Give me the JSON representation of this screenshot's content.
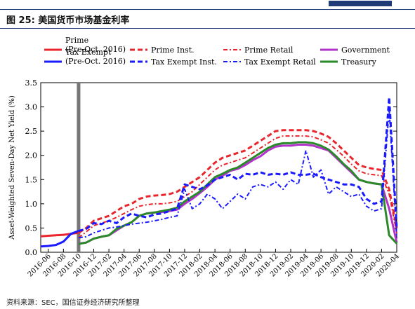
{
  "header": {
    "figure_title": "图 25:  美国货币市场基金利率",
    "source_note": "资料来源：SEC，国信证券经济研究所整理"
  },
  "chart_data": {
    "type": "line",
    "title": "",
    "xlabel": "",
    "ylabel": "Asset-Weighted Seven-Day Net Yield (%)",
    "ylim": [
      0,
      3.5
    ],
    "yticks": [
      "0.0",
      "0.5",
      "1.0",
      "1.5",
      "2.0",
      "2.5",
      "3.0",
      "3.5"
    ],
    "x_ticks": [
      "2016-06",
      "2016-08",
      "2016-10",
      "2016-12",
      "2017-02",
      "2017-04",
      "2017-06",
      "2017-08",
      "2017-10",
      "2017-12",
      "2018-02",
      "2018-04",
      "2018-06",
      "2018-08",
      "2018-10",
      "2018-12",
      "2019-02",
      "2019-04",
      "2019-06",
      "2019-08",
      "2019-10",
      "2019-12",
      "2020-02",
      "2020-04"
    ],
    "x_range": [
      "2016-05",
      "2020-04"
    ],
    "divider_date": "2016-10",
    "grid": false,
    "legend_position": "top",
    "series": [
      {
        "name": "Prime\n(Pre-Oct. 2016)",
        "color": "#e8262b",
        "style": "solid",
        "width": 3,
        "points": [
          [
            "2016-05",
            0.33
          ],
          [
            "2016-06",
            0.34
          ],
          [
            "2016-07",
            0.35
          ],
          [
            "2016-08",
            0.36
          ],
          [
            "2016-09",
            0.38
          ],
          [
            "2016-10",
            0.4
          ]
        ]
      },
      {
        "name": "Tax Exempt\n(Pre-Oct. 2016)",
        "color": "#1a1aff",
        "style": "solid",
        "width": 3,
        "points": [
          [
            "2016-05",
            0.12
          ],
          [
            "2016-06",
            0.13
          ],
          [
            "2016-07",
            0.15
          ],
          [
            "2016-08",
            0.22
          ],
          [
            "2016-09",
            0.38
          ],
          [
            "2016-10",
            0.44
          ]
        ]
      },
      {
        "name": "Prime Inst.",
        "color": "#e8262b",
        "style": "dash",
        "width": 3,
        "points": [
          [
            "2016-10",
            0.4
          ],
          [
            "2016-11",
            0.5
          ],
          [
            "2016-12",
            0.65
          ],
          [
            "2017-01",
            0.7
          ],
          [
            "2017-02",
            0.75
          ],
          [
            "2017-03",
            0.85
          ],
          [
            "2017-04",
            0.95
          ],
          [
            "2017-05",
            1.0
          ],
          [
            "2017-06",
            1.1
          ],
          [
            "2017-07",
            1.15
          ],
          [
            "2017-08",
            1.17
          ],
          [
            "2017-09",
            1.18
          ],
          [
            "2017-10",
            1.2
          ],
          [
            "2017-11",
            1.25
          ],
          [
            "2017-12",
            1.35
          ],
          [
            "2018-01",
            1.45
          ],
          [
            "2018-02",
            1.55
          ],
          [
            "2018-03",
            1.7
          ],
          [
            "2018-04",
            1.85
          ],
          [
            "2018-05",
            1.95
          ],
          [
            "2018-06",
            2.0
          ],
          [
            "2018-07",
            2.05
          ],
          [
            "2018-08",
            2.1
          ],
          [
            "2018-09",
            2.2
          ],
          [
            "2018-10",
            2.3
          ],
          [
            "2018-11",
            2.4
          ],
          [
            "2018-12",
            2.5
          ],
          [
            "2019-01",
            2.52
          ],
          [
            "2019-02",
            2.52
          ],
          [
            "2019-03",
            2.52
          ],
          [
            "2019-04",
            2.52
          ],
          [
            "2019-05",
            2.5
          ],
          [
            "2019-06",
            2.45
          ],
          [
            "2019-07",
            2.38
          ],
          [
            "2019-08",
            2.25
          ],
          [
            "2019-09",
            2.1
          ],
          [
            "2019-10",
            1.95
          ],
          [
            "2019-11",
            1.8
          ],
          [
            "2019-12",
            1.75
          ],
          [
            "2020-01",
            1.72
          ],
          [
            "2020-02",
            1.7
          ],
          [
            "2020-03",
            1.3
          ],
          [
            "2020-04",
            0.5
          ]
        ]
      },
      {
        "name": "Prime Retail",
        "color": "#e8262b",
        "style": "dashdot",
        "width": 2,
        "points": [
          [
            "2016-10",
            0.3
          ],
          [
            "2016-11",
            0.42
          ],
          [
            "2016-12",
            0.55
          ],
          [
            "2017-01",
            0.6
          ],
          [
            "2017-02",
            0.65
          ],
          [
            "2017-03",
            0.72
          ],
          [
            "2017-04",
            0.8
          ],
          [
            "2017-05",
            0.88
          ],
          [
            "2017-06",
            0.95
          ],
          [
            "2017-07",
            0.98
          ],
          [
            "2017-08",
            1.0
          ],
          [
            "2017-09",
            1.0
          ],
          [
            "2017-10",
            1.02
          ],
          [
            "2017-11",
            1.05
          ],
          [
            "2017-12",
            1.15
          ],
          [
            "2018-01",
            1.25
          ],
          [
            "2018-02",
            1.4
          ],
          [
            "2018-03",
            1.55
          ],
          [
            "2018-04",
            1.7
          ],
          [
            "2018-05",
            1.8
          ],
          [
            "2018-06",
            1.85
          ],
          [
            "2018-07",
            1.9
          ],
          [
            "2018-08",
            1.95
          ],
          [
            "2018-09",
            2.05
          ],
          [
            "2018-10",
            2.15
          ],
          [
            "2018-11",
            2.25
          ],
          [
            "2018-12",
            2.35
          ],
          [
            "2019-01",
            2.4
          ],
          [
            "2019-02",
            2.4
          ],
          [
            "2019-03",
            2.4
          ],
          [
            "2019-04",
            2.4
          ],
          [
            "2019-05",
            2.38
          ],
          [
            "2019-06",
            2.32
          ],
          [
            "2019-07",
            2.25
          ],
          [
            "2019-08",
            2.12
          ],
          [
            "2019-09",
            1.98
          ],
          [
            "2019-10",
            1.82
          ],
          [
            "2019-11",
            1.68
          ],
          [
            "2019-12",
            1.62
          ],
          [
            "2020-01",
            1.6
          ],
          [
            "2020-02",
            1.58
          ],
          [
            "2020-03",
            1.2
          ],
          [
            "2020-04",
            0.4
          ]
        ]
      },
      {
        "name": "Government",
        "color": "#b233c9",
        "style": "solid",
        "width": 3,
        "points": [
          [
            "2016-10",
            0.18
          ],
          [
            "2016-11",
            0.2
          ],
          [
            "2016-12",
            0.28
          ],
          [
            "2017-01",
            0.32
          ],
          [
            "2017-02",
            0.35
          ],
          [
            "2017-03",
            0.45
          ],
          [
            "2017-04",
            0.55
          ],
          [
            "2017-05",
            0.62
          ],
          [
            "2017-06",
            0.75
          ],
          [
            "2017-07",
            0.8
          ],
          [
            "2017-08",
            0.82
          ],
          [
            "2017-09",
            0.83
          ],
          [
            "2017-10",
            0.85
          ],
          [
            "2017-11",
            0.88
          ],
          [
            "2017-12",
            1.0
          ],
          [
            "2018-01",
            1.1
          ],
          [
            "2018-02",
            1.22
          ],
          [
            "2018-03",
            1.35
          ],
          [
            "2018-04",
            1.5
          ],
          [
            "2018-05",
            1.58
          ],
          [
            "2018-06",
            1.68
          ],
          [
            "2018-07",
            1.72
          ],
          [
            "2018-08",
            1.8
          ],
          [
            "2018-09",
            1.9
          ],
          [
            "2018-10",
            1.98
          ],
          [
            "2018-11",
            2.1
          ],
          [
            "2018-12",
            2.18
          ],
          [
            "2019-01",
            2.2
          ],
          [
            "2019-02",
            2.2
          ],
          [
            "2019-03",
            2.22
          ],
          [
            "2019-04",
            2.22
          ],
          [
            "2019-05",
            2.2
          ],
          [
            "2019-06",
            2.15
          ],
          [
            "2019-07",
            2.1
          ],
          [
            "2019-08",
            1.95
          ],
          [
            "2019-09",
            1.8
          ],
          [
            "2019-10",
            1.65
          ],
          [
            "2019-11",
            1.5
          ],
          [
            "2019-12",
            1.45
          ],
          [
            "2020-01",
            1.42
          ],
          [
            "2020-02",
            1.4
          ],
          [
            "2020-03",
            0.9
          ],
          [
            "2020-04",
            0.2
          ]
        ]
      },
      {
        "name": "Treasury",
        "color": "#2a8a2a",
        "style": "solid",
        "width": 3,
        "points": [
          [
            "2016-10",
            0.17
          ],
          [
            "2016-11",
            0.2
          ],
          [
            "2016-12",
            0.28
          ],
          [
            "2017-01",
            0.32
          ],
          [
            "2017-02",
            0.35
          ],
          [
            "2017-03",
            0.48
          ],
          [
            "2017-04",
            0.55
          ],
          [
            "2017-05",
            0.62
          ],
          [
            "2017-06",
            0.75
          ],
          [
            "2017-07",
            0.8
          ],
          [
            "2017-08",
            0.82
          ],
          [
            "2017-09",
            0.85
          ],
          [
            "2017-10",
            0.88
          ],
          [
            "2017-11",
            0.92
          ],
          [
            "2017-12",
            1.05
          ],
          [
            "2018-01",
            1.15
          ],
          [
            "2018-02",
            1.25
          ],
          [
            "2018-03",
            1.4
          ],
          [
            "2018-04",
            1.55
          ],
          [
            "2018-05",
            1.62
          ],
          [
            "2018-06",
            1.7
          ],
          [
            "2018-07",
            1.75
          ],
          [
            "2018-08",
            1.85
          ],
          [
            "2018-09",
            1.95
          ],
          [
            "2018-10",
            2.05
          ],
          [
            "2018-11",
            2.15
          ],
          [
            "2018-12",
            2.22
          ],
          [
            "2019-01",
            2.25
          ],
          [
            "2019-02",
            2.25
          ],
          [
            "2019-03",
            2.27
          ],
          [
            "2019-04",
            2.27
          ],
          [
            "2019-05",
            2.25
          ],
          [
            "2019-06",
            2.2
          ],
          [
            "2019-07",
            2.12
          ],
          [
            "2019-08",
            1.98
          ],
          [
            "2019-09",
            1.82
          ],
          [
            "2019-10",
            1.68
          ],
          [
            "2019-11",
            1.5
          ],
          [
            "2019-12",
            1.45
          ],
          [
            "2020-01",
            1.42
          ],
          [
            "2020-02",
            1.4
          ],
          [
            "2020-03",
            0.35
          ],
          [
            "2020-04",
            0.18
          ]
        ]
      },
      {
        "name": "Tax Exempt Inst.",
        "color": "#1a1aff",
        "style": "dash",
        "width": 3,
        "points": [
          [
            "2016-10",
            0.44
          ],
          [
            "2016-11",
            0.48
          ],
          [
            "2016-12",
            0.6
          ],
          [
            "2017-01",
            0.58
          ],
          [
            "2017-02",
            0.65
          ],
          [
            "2017-03",
            0.6
          ],
          [
            "2017-04",
            0.72
          ],
          [
            "2017-05",
            0.8
          ],
          [
            "2017-06",
            0.75
          ],
          [
            "2017-07",
            0.72
          ],
          [
            "2017-08",
            0.78
          ],
          [
            "2017-09",
            0.8
          ],
          [
            "2017-10",
            0.85
          ],
          [
            "2017-11",
            0.9
          ],
          [
            "2017-12",
            1.4
          ],
          [
            "2018-01",
            1.35
          ],
          [
            "2018-02",
            1.3
          ],
          [
            "2018-03",
            1.38
          ],
          [
            "2018-04",
            1.5
          ],
          [
            "2018-05",
            1.55
          ],
          [
            "2018-06",
            1.6
          ],
          [
            "2018-07",
            1.5
          ],
          [
            "2018-08",
            1.62
          ],
          [
            "2018-09",
            1.6
          ],
          [
            "2018-10",
            1.65
          ],
          [
            "2018-11",
            1.6
          ],
          [
            "2018-12",
            1.62
          ],
          [
            "2019-01",
            1.6
          ],
          [
            "2019-02",
            1.65
          ],
          [
            "2019-03",
            1.6
          ],
          [
            "2019-04",
            1.6
          ],
          [
            "2019-05",
            1.62
          ],
          [
            "2019-06",
            1.55
          ],
          [
            "2019-07",
            1.5
          ],
          [
            "2019-08",
            1.45
          ],
          [
            "2019-09",
            1.4
          ],
          [
            "2019-10",
            1.4
          ],
          [
            "2019-11",
            1.35
          ],
          [
            "2019-12",
            1.1
          ],
          [
            "2020-01",
            1.0
          ],
          [
            "2020-02",
            1.05
          ],
          [
            "2020-03",
            3.2
          ],
          [
            "2020-04",
            0.5
          ]
        ]
      },
      {
        "name": "Tax Exempt Retail",
        "color": "#1a1aff",
        "style": "dashdot",
        "width": 2,
        "points": [
          [
            "2016-10",
            0.3
          ],
          [
            "2016-11",
            0.32
          ],
          [
            "2016-12",
            0.4
          ],
          [
            "2017-01",
            0.45
          ],
          [
            "2017-02",
            0.5
          ],
          [
            "2017-03",
            0.52
          ],
          [
            "2017-04",
            0.55
          ],
          [
            "2017-05",
            0.58
          ],
          [
            "2017-06",
            0.6
          ],
          [
            "2017-07",
            0.62
          ],
          [
            "2017-08",
            0.65
          ],
          [
            "2017-09",
            0.68
          ],
          [
            "2017-10",
            0.72
          ],
          [
            "2017-11",
            0.75
          ],
          [
            "2017-12",
            1.3
          ],
          [
            "2018-01",
            0.9
          ],
          [
            "2018-02",
            1.0
          ],
          [
            "2018-03",
            1.2
          ],
          [
            "2018-04",
            1.1
          ],
          [
            "2018-05",
            0.9
          ],
          [
            "2018-06",
            1.05
          ],
          [
            "2018-07",
            1.2
          ],
          [
            "2018-08",
            1.1
          ],
          [
            "2018-09",
            1.35
          ],
          [
            "2018-10",
            1.4
          ],
          [
            "2018-11",
            1.35
          ],
          [
            "2018-12",
            1.45
          ],
          [
            "2019-01",
            1.3
          ],
          [
            "2019-02",
            1.5
          ],
          [
            "2019-03",
            1.4
          ],
          [
            "2019-04",
            2.1
          ],
          [
            "2019-05",
            1.55
          ],
          [
            "2019-06",
            1.7
          ],
          [
            "2019-07",
            1.2
          ],
          [
            "2019-08",
            1.35
          ],
          [
            "2019-09",
            1.25
          ],
          [
            "2019-10",
            1.15
          ],
          [
            "2019-11",
            1.2
          ],
          [
            "2019-12",
            0.95
          ],
          [
            "2020-01",
            0.85
          ],
          [
            "2020-02",
            0.9
          ],
          [
            "2020-03",
            2.95
          ],
          [
            "2020-04",
            0.3
          ]
        ]
      }
    ]
  }
}
